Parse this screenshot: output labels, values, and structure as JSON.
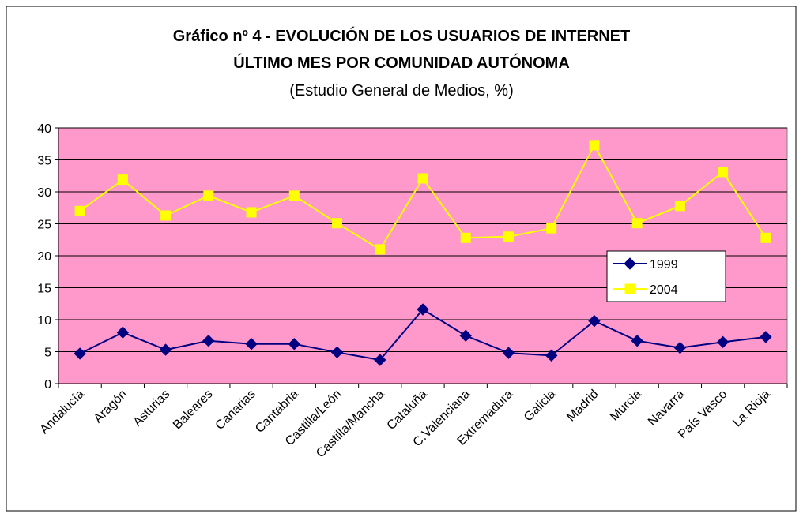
{
  "chart_data": {
    "type": "line",
    "title": [
      "Gráfico nº 4 - EVOLUCIÓN DE LOS USUARIOS DE INTERNET",
      "ÚLTIMO MES POR COMUNIDAD AUTÓNOMA"
    ],
    "subtitle": "(Estudio General de Medios, %)",
    "categories": [
      "Andalucía",
      "Aragón",
      "Asturias",
      "Baleares",
      "Canarias",
      "Cantabria",
      "Castilla/León",
      "Castilla/Mancha",
      "Cataluña",
      "C.Valenciana",
      "Extremadura",
      "Galicia",
      "Madrid",
      "Murcia",
      "Navarra",
      "País Vasco",
      "La Rioja"
    ],
    "series": [
      {
        "name": "1999",
        "color": "#000080",
        "marker": "diamond",
        "values": [
          4.7,
          8.0,
          5.3,
          6.7,
          6.2,
          6.2,
          4.9,
          3.7,
          11.6,
          7.5,
          4.8,
          4.4,
          9.8,
          6.7,
          5.6,
          6.5,
          7.3
        ]
      },
      {
        "name": "2004",
        "color": "#ffff00",
        "marker": "square",
        "values": [
          27.0,
          31.9,
          26.3,
          29.4,
          26.8,
          29.4,
          25.1,
          21.0,
          32.1,
          22.8,
          23.0,
          24.3,
          37.3,
          25.1,
          27.8,
          33.1,
          22.8
        ]
      }
    ],
    "ylim": [
      0,
      40
    ],
    "yticks": [
      0,
      5,
      10,
      15,
      20,
      25,
      30,
      35,
      40
    ],
    "grid": true,
    "plot_background": "#ff99cc",
    "legend": "right"
  }
}
